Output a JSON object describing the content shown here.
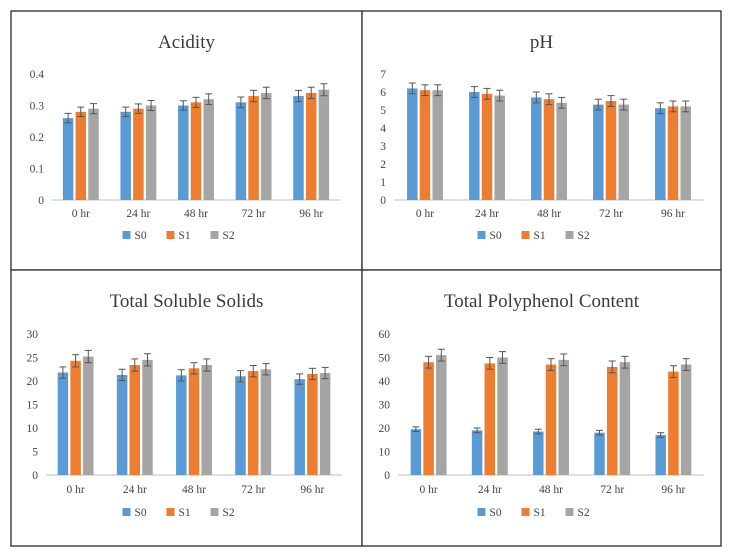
{
  "colors": {
    "S0": "#5b9bd5",
    "S1": "#ed7d31",
    "S2": "#a5a5a5"
  },
  "chart_data": [
    {
      "type": "bar",
      "title": "Acidity",
      "categories": [
        "0 hr",
        "24 hr",
        "48 hr",
        "72 hr",
        "96 hr"
      ],
      "ylim": [
        0,
        0.4
      ],
      "yticks": [
        "0",
        "0.1",
        "0.2",
        "0.3",
        "0.4"
      ],
      "ytick_values": [
        0,
        0.1,
        0.2,
        0.3,
        0.4
      ],
      "series": [
        {
          "name": "S0",
          "values": [
            0.26,
            0.28,
            0.3,
            0.31,
            0.33
          ],
          "errors": [
            0.015,
            0.015,
            0.015,
            0.017,
            0.018
          ]
        },
        {
          "name": "S1",
          "values": [
            0.28,
            0.29,
            0.31,
            0.33,
            0.34
          ],
          "errors": [
            0.015,
            0.015,
            0.016,
            0.018,
            0.018
          ]
        },
        {
          "name": "S2",
          "values": [
            0.29,
            0.3,
            0.32,
            0.34,
            0.35
          ],
          "errors": [
            0.016,
            0.016,
            0.017,
            0.018,
            0.019
          ]
        }
      ],
      "legend": [
        "S0",
        "S1",
        "S2"
      ]
    },
    {
      "type": "bar",
      "title": "pH",
      "categories": [
        "0 hr",
        "24 hr",
        "48 hr",
        "72 hr",
        "96 hr"
      ],
      "ylim": [
        0,
        7
      ],
      "yticks": [
        "0",
        "1",
        "2",
        "3",
        "4",
        "5",
        "6",
        "7"
      ],
      "ytick_values": [
        0,
        1,
        2,
        3,
        4,
        5,
        6,
        7
      ],
      "series": [
        {
          "name": "S0",
          "values": [
            6.2,
            6.0,
            5.7,
            5.3,
            5.1
          ],
          "errors": [
            0.3,
            0.3,
            0.3,
            0.3,
            0.3
          ]
        },
        {
          "name": "S1",
          "values": [
            6.1,
            5.9,
            5.6,
            5.5,
            5.2
          ],
          "errors": [
            0.3,
            0.3,
            0.3,
            0.3,
            0.3
          ]
        },
        {
          "name": "S2",
          "values": [
            6.1,
            5.8,
            5.4,
            5.3,
            5.2
          ],
          "errors": [
            0.3,
            0.3,
            0.3,
            0.3,
            0.3
          ]
        }
      ],
      "legend": [
        "S0",
        "S1",
        "S2"
      ]
    },
    {
      "type": "bar",
      "title": "Total Soluble Solids",
      "categories": [
        "0 hr",
        "24 hr",
        "48 hr",
        "72 hr",
        "96 hr"
      ],
      "ylim": [
        0,
        30
      ],
      "yticks": [
        "0",
        "5",
        "10",
        "15",
        "20",
        "25",
        "30"
      ],
      "ytick_values": [
        0,
        5,
        10,
        15,
        20,
        25,
        30
      ],
      "series": [
        {
          "name": "S0",
          "values": [
            21.8,
            21.3,
            21.2,
            21.0,
            20.4
          ],
          "errors": [
            1.2,
            1.2,
            1.2,
            1.2,
            1.1
          ]
        },
        {
          "name": "S1",
          "values": [
            24.3,
            23.4,
            22.7,
            22.1,
            21.5
          ],
          "errors": [
            1.3,
            1.3,
            1.2,
            1.2,
            1.2
          ]
        },
        {
          "name": "S2",
          "values": [
            25.2,
            24.5,
            23.4,
            22.5,
            21.7
          ],
          "errors": [
            1.3,
            1.3,
            1.3,
            1.2,
            1.2
          ]
        }
      ],
      "legend": [
        "S0",
        "S1",
        "S2"
      ]
    },
    {
      "type": "bar",
      "title": "Total Polyphenol Content",
      "categories": [
        "0 hr",
        "24 hr",
        "48 hr",
        "72 hr",
        "96 hr"
      ],
      "ylim": [
        0,
        60
      ],
      "yticks": [
        "0",
        "10",
        "20",
        "30",
        "40",
        "50",
        "60"
      ],
      "ytick_values": [
        0,
        10,
        20,
        30,
        40,
        50,
        60
      ],
      "series": [
        {
          "name": "S0",
          "values": [
            19.5,
            19.0,
            18.5,
            18.0,
            17.0
          ],
          "errors": [
            1.0,
            1.0,
            1.0,
            1.0,
            1.0
          ]
        },
        {
          "name": "S1",
          "values": [
            48.0,
            47.5,
            47.0,
            46.0,
            44.0
          ],
          "errors": [
            2.5,
            2.5,
            2.5,
            2.5,
            2.5
          ]
        },
        {
          "name": "S2",
          "values": [
            51.0,
            50.0,
            49.0,
            48.0,
            47.0
          ],
          "errors": [
            2.5,
            2.5,
            2.5,
            2.5,
            2.5
          ]
        }
      ],
      "legend": [
        "S0",
        "S1",
        "S2"
      ]
    }
  ]
}
